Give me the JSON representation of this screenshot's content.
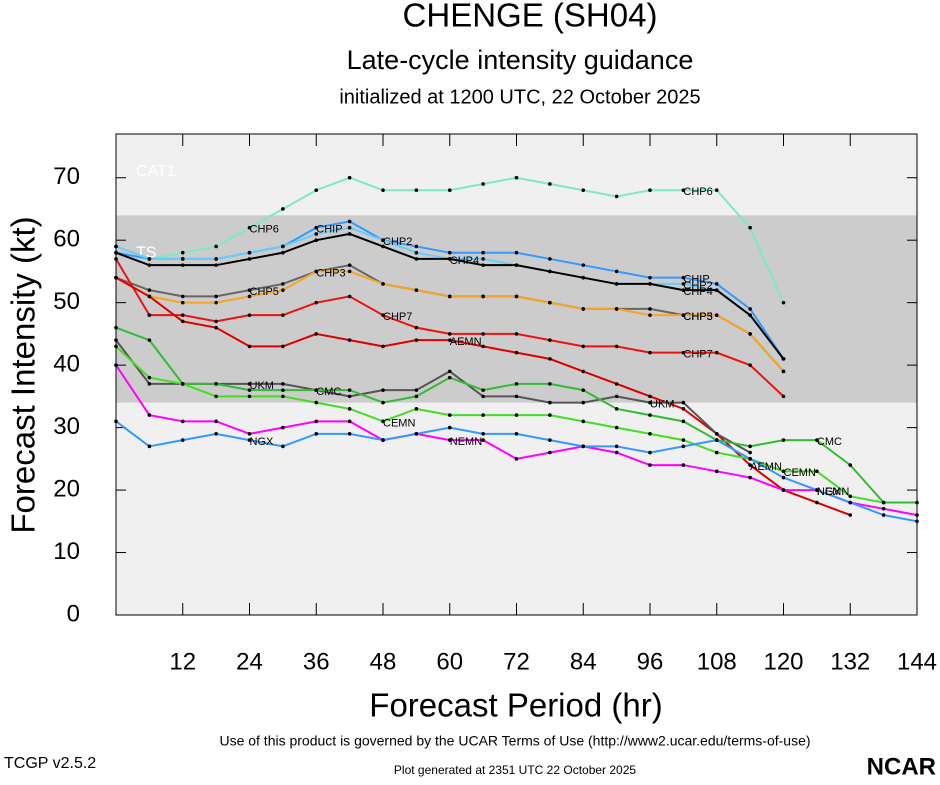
{
  "chart_data": {
    "type": "line",
    "title": "CHENGE (SH04)",
    "subtitle": "Late-cycle intensity guidance",
    "note": "initialized at 1200 UTC, 22 October 2025",
    "x_label": "Forecast Period (hr)",
    "y_label": "Forecast Intensity (kt)",
    "footer": "Use of this product is governed by the UCAR Terms of Use (http://www2.ucar.edu/terms-of-use)",
    "version": "TCGP v2.5.2",
    "generated": "Plot generated at 2351 UTC   22 October 2025",
    "logo": "NCAR",
    "xlim": [
      0,
      144
    ],
    "ylim": [
      0,
      77
    ],
    "xticks": [
      12,
      24,
      36,
      48,
      60,
      72,
      84,
      96,
      108,
      120,
      132,
      144
    ],
    "yticks": [
      0,
      10,
      20,
      30,
      40,
      50,
      60,
      70
    ],
    "bands": [
      {
        "label": "TS",
        "ymin": 34,
        "ymax": 64,
        "color": "#cccccc"
      },
      {
        "label": "CAT1",
        "ymin": 64,
        "color": "#f0f0f0"
      }
    ],
    "x": [
      0,
      6,
      12,
      18,
      24,
      30,
      36,
      42,
      48,
      54,
      60,
      66,
      72,
      78,
      84,
      90,
      96,
      102,
      108,
      114,
      120,
      126,
      132,
      138,
      144
    ],
    "series": [
      {
        "name": "CHP6",
        "color": "#7fe8c4",
        "values": [
          59,
          57,
          58,
          59,
          62,
          65,
          68,
          70,
          68,
          68,
          68,
          69,
          70,
          69,
          68,
          67,
          68,
          68,
          68,
          62,
          50,
          null,
          null,
          null,
          null
        ]
      },
      {
        "name": "CHIP",
        "color": "#3399ff",
        "values": [
          58,
          57,
          57,
          57,
          58,
          59,
          62,
          63,
          60,
          59,
          58,
          58,
          58,
          57,
          56,
          55,
          54,
          54,
          53,
          49,
          41,
          null,
          null,
          null,
          null
        ]
      },
      {
        "name": "CHP2",
        "color": "#66ccff",
        "values": [
          59,
          57,
          57,
          57,
          58,
          59,
          61,
          62,
          60,
          58,
          57,
          57,
          56,
          55,
          54,
          53,
          53,
          53,
          52,
          48,
          41,
          null,
          null,
          null,
          null
        ]
      },
      {
        "name": "CHP4",
        "color": "#000000",
        "values": [
          58,
          56,
          56,
          56,
          57,
          58,
          60,
          61,
          59,
          57,
          57,
          56,
          56,
          55,
          54,
          53,
          53,
          52,
          52,
          48,
          41,
          null,
          null,
          null,
          null
        ]
      },
      {
        "name": "CHP5",
        "color": "#666666",
        "values": [
          54,
          52,
          51,
          51,
          52,
          53,
          55,
          56,
          53,
          52,
          51,
          51,
          51,
          50,
          49,
          49,
          49,
          48,
          48,
          45,
          39,
          null,
          null,
          null,
          null
        ]
      },
      {
        "name": "CHP3",
        "color": "#f5a623",
        "values": [
          54,
          51,
          50,
          50,
          51,
          52,
          55,
          55,
          53,
          52,
          51,
          51,
          51,
          50,
          49,
          49,
          48,
          48,
          48,
          45,
          39,
          null,
          null,
          null,
          null
        ]
      },
      {
        "name": "CHP7",
        "color": "#ee1111",
        "values": [
          57,
          48,
          48,
          47,
          48,
          48,
          50,
          51,
          48,
          46,
          45,
          45,
          45,
          44,
          43,
          43,
          42,
          42,
          42,
          40,
          35,
          null,
          null,
          null,
          null
        ]
      },
      {
        "name": "AEMN",
        "color": "#dd0000",
        "values": [
          54,
          51,
          47,
          46,
          43,
          43,
          45,
          44,
          43,
          44,
          44,
          43,
          42,
          41,
          39,
          37,
          35,
          33,
          29,
          24,
          20,
          18,
          16,
          null,
          null
        ]
      },
      {
        "name": "UKM",
        "color": "#555555",
        "values": [
          44,
          37,
          37,
          37,
          37,
          37,
          36,
          35,
          36,
          36,
          39,
          35,
          35,
          34,
          34,
          35,
          34,
          34,
          29,
          26,
          null,
          null,
          null,
          null,
          null
        ]
      },
      {
        "name": "CMC",
        "color": "#33bb33",
        "values": [
          46,
          44,
          37,
          37,
          36,
          36,
          36,
          36,
          34,
          35,
          38,
          36,
          37,
          37,
          36,
          33,
          32,
          31,
          28,
          27,
          28,
          28,
          24,
          18,
          18
        ]
      },
      {
        "name": "CEMN",
        "color": "#44dd22",
        "values": [
          43,
          38,
          37,
          35,
          35,
          35,
          34,
          33,
          31,
          33,
          32,
          32,
          32,
          32,
          31,
          30,
          29,
          28,
          26,
          25,
          23,
          23,
          19,
          18,
          null
        ]
      },
      {
        "name": "NEMN",
        "color": "#ff00ff",
        "values": [
          40,
          32,
          31,
          31,
          29,
          30,
          31,
          31,
          28,
          29,
          28,
          28,
          25,
          26,
          27,
          26,
          24,
          24,
          23,
          22,
          20,
          20,
          18,
          17,
          16
        ]
      },
      {
        "name": "NGX",
        "color": "#3399ff",
        "values": [
          31,
          27,
          28,
          29,
          28,
          27,
          29,
          29,
          28,
          29,
          30,
          29,
          29,
          28,
          27,
          27,
          26,
          27,
          28,
          25,
          22,
          20,
          18,
          16,
          15
        ]
      }
    ]
  }
}
